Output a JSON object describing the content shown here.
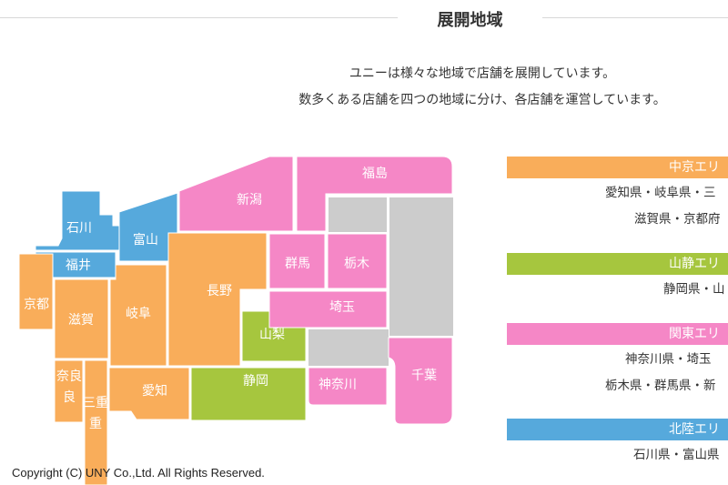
{
  "section": {
    "title": "展開地域",
    "intro_lines": [
      "ユニーは様々な地域で店舗を展開しています。",
      "数多くある店舗を四つの地域に分け、各店舗を運営しています。"
    ]
  },
  "colors": {
    "chubu": "#f9ad5a",
    "sanjo": "#a6c63e",
    "kanto": "#f587c6",
    "hokuriku": "#56a9dc",
    "other": "#cccccc"
  },
  "map": {
    "prefectures": [
      {
        "id": "ishikawa",
        "label": "石川",
        "region": "hokuriku"
      },
      {
        "id": "toyama",
        "label": "富山",
        "region": "hokuriku"
      },
      {
        "id": "fukui",
        "label": "福井",
        "region": "hokuriku"
      },
      {
        "id": "kyoto",
        "label": "京都",
        "region": "chubu"
      },
      {
        "id": "shiga",
        "label": "滋賀",
        "region": "chubu"
      },
      {
        "id": "gifu",
        "label": "岐阜",
        "region": "chubu"
      },
      {
        "id": "nagano",
        "label": "長野",
        "region": "chubu"
      },
      {
        "id": "nara",
        "label": "奈良",
        "region": "chubu"
      },
      {
        "id": "mie",
        "label": "三重",
        "region": "chubu"
      },
      {
        "id": "aichi",
        "label": "愛知",
        "region": "chubu"
      },
      {
        "id": "yamanashi",
        "label": "山梨",
        "region": "sanjo"
      },
      {
        "id": "shizuoka",
        "label": "静岡",
        "region": "sanjo"
      },
      {
        "id": "niigata",
        "label": "新潟",
        "region": "kanto"
      },
      {
        "id": "fukushima",
        "label": "福島",
        "region": "kanto"
      },
      {
        "id": "gunma",
        "label": "群馬",
        "region": "kanto"
      },
      {
        "id": "tochigi",
        "label": "栃木",
        "region": "kanto"
      },
      {
        "id": "saitama",
        "label": "埼玉",
        "region": "kanto"
      },
      {
        "id": "kanagawa",
        "label": "神奈川",
        "region": "kanto"
      },
      {
        "id": "chiba",
        "label": "千葉",
        "region": "kanto"
      }
    ]
  },
  "areas": [
    {
      "name": "中京エリ",
      "region": "chubu",
      "lines": [
        "愛知県・岐阜県・三",
        "滋賀県・京都府"
      ]
    },
    {
      "name": "山静エリ",
      "region": "sanjo",
      "lines": [
        "静岡県・山"
      ]
    },
    {
      "name": "関東エリ",
      "region": "kanto",
      "lines": [
        "神奈川県・埼玉",
        "栃木県・群馬県・新"
      ]
    },
    {
      "name": "北陸エリ",
      "region": "hokuriku",
      "lines": [
        "石川県・富山県"
      ]
    }
  ],
  "footer": {
    "copyright": "Copyright (C) UNY Co.,Ltd. All Rights Reserved."
  }
}
